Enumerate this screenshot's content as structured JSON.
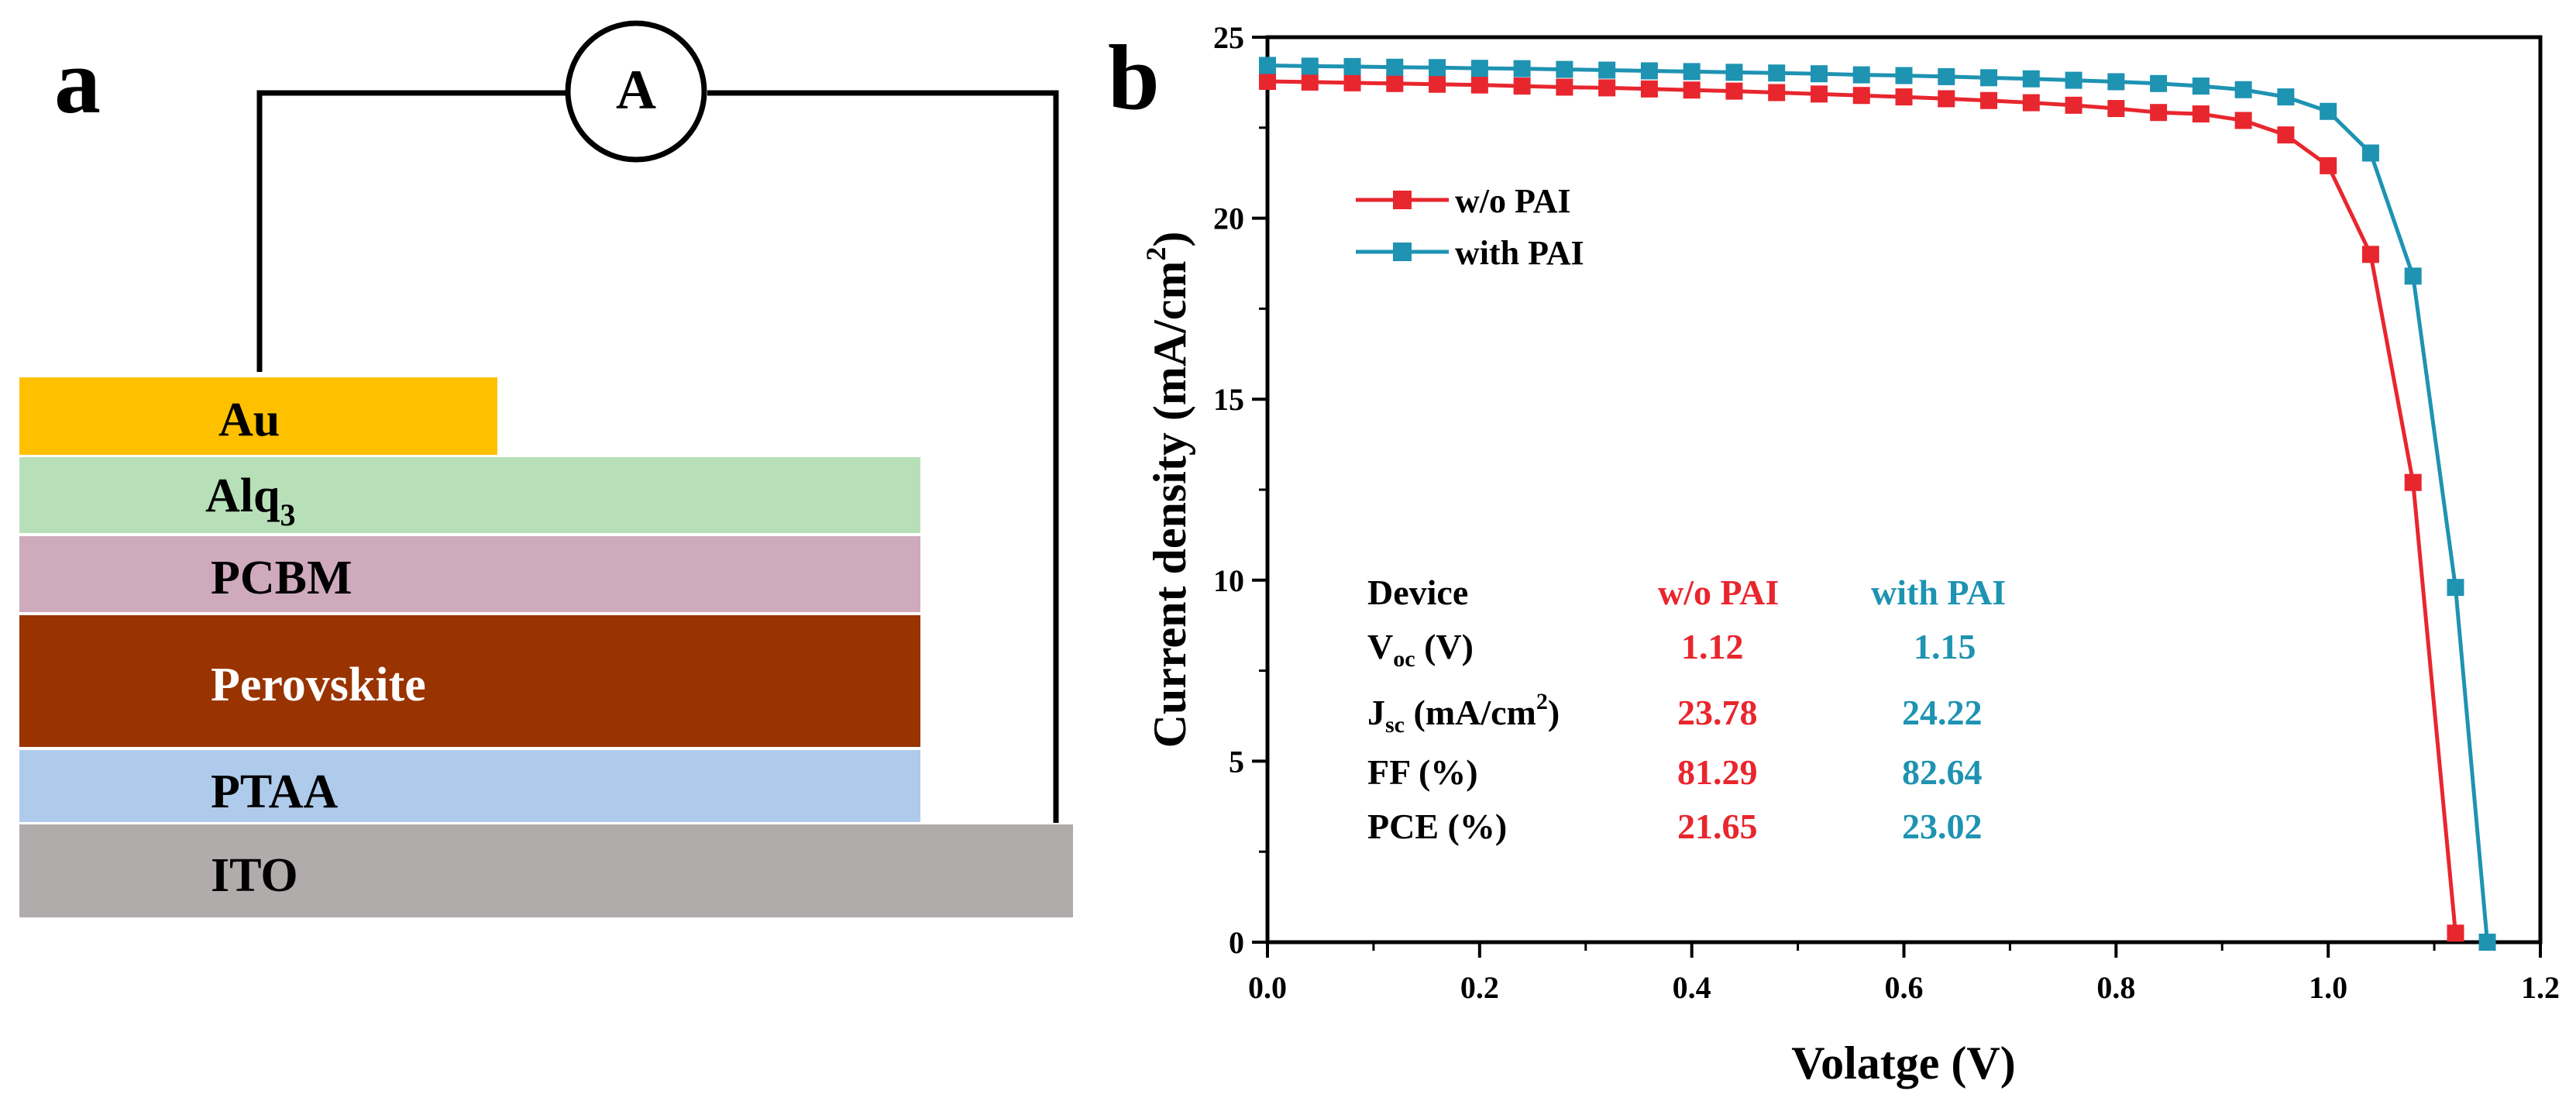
{
  "panels": {
    "a": {
      "label": "a",
      "ammeter_label": "A",
      "layers": [
        {
          "key": "au",
          "label": "Au",
          "color": "#FFC000"
        },
        {
          "key": "alq3",
          "label": "Alq",
          "subscript": "3",
          "color": "#B8E0B8"
        },
        {
          "key": "pcbm",
          "label": "PCBM",
          "color": "#CFAABC"
        },
        {
          "key": "perovskite",
          "label": "Perovskite",
          "color": "#993300"
        },
        {
          "key": "ptaa",
          "label": "PTAA",
          "color": "#AFCBEB"
        },
        {
          "key": "ito",
          "label": "ITO",
          "color": "#B0ACAC"
        }
      ]
    },
    "b": {
      "label": "b"
    }
  },
  "colors": {
    "without_pai": "#E8262E",
    "with_pai": "#1E93B2",
    "axis": "#000000"
  },
  "chart_data": {
    "type": "line",
    "title": "",
    "xlabel": "Volatge (V)",
    "ylabel_main": "Current density (mA/cm",
    "ylabel_sup": "2",
    "ylabel_end": ")",
    "xlim": [
      0.0,
      1.2
    ],
    "ylim": [
      0,
      25
    ],
    "xticks": [
      "0.0",
      "0.2",
      "0.4",
      "0.6",
      "0.8",
      "1.0",
      "1.2"
    ],
    "yticks": [
      "0",
      "5",
      "10",
      "15",
      "20",
      "25"
    ],
    "legend": {
      "position": "top-left"
    },
    "series": [
      {
        "name": "w/o PAI",
        "color": "#E8262E",
        "x": [
          0.0,
          0.04,
          0.08,
          0.12,
          0.16,
          0.2,
          0.24,
          0.28,
          0.32,
          0.36,
          0.4,
          0.44,
          0.48,
          0.52,
          0.56,
          0.6,
          0.64,
          0.68,
          0.72,
          0.76,
          0.8,
          0.84,
          0.88,
          0.92,
          0.96,
          1.0,
          1.04,
          1.08,
          1.12
        ],
        "y": [
          23.78,
          23.76,
          23.74,
          23.72,
          23.7,
          23.68,
          23.65,
          23.62,
          23.6,
          23.57,
          23.54,
          23.51,
          23.47,
          23.43,
          23.39,
          23.35,
          23.3,
          23.25,
          23.19,
          23.12,
          23.03,
          22.92,
          22.88,
          22.7,
          22.3,
          21.45,
          19.0,
          12.7,
          0.25
        ]
      },
      {
        "name": "with PAI",
        "color": "#1E93B2",
        "x": [
          0.0,
          0.04,
          0.08,
          0.12,
          0.16,
          0.2,
          0.24,
          0.28,
          0.32,
          0.36,
          0.4,
          0.44,
          0.48,
          0.52,
          0.56,
          0.6,
          0.64,
          0.68,
          0.72,
          0.76,
          0.8,
          0.84,
          0.88,
          0.92,
          0.96,
          1.0,
          1.04,
          1.08,
          1.12,
          1.15
        ],
        "y": [
          24.22,
          24.2,
          24.19,
          24.17,
          24.16,
          24.14,
          24.13,
          24.11,
          24.09,
          24.07,
          24.05,
          24.03,
          24.01,
          23.99,
          23.96,
          23.94,
          23.91,
          23.88,
          23.85,
          23.81,
          23.77,
          23.72,
          23.65,
          23.55,
          23.35,
          22.95,
          21.8,
          18.4,
          9.8,
          0.0
        ]
      }
    ],
    "table": {
      "headers": [
        "Device",
        "w/o PAI",
        "with PAI"
      ],
      "rows": [
        {
          "param": "V",
          "sub": "oc",
          "unit": " (V)",
          "sup": "",
          "unit_end": "",
          "without": "1.12",
          "with": "1.15"
        },
        {
          "param": "J",
          "sub": "sc",
          "unit": " (mA/cm",
          "sup": "2",
          "unit_end": ")",
          "without": "23.78",
          "with": "24.22"
        },
        {
          "param": "FF (%)",
          "sub": "",
          "unit": "",
          "sup": "",
          "unit_end": "",
          "without": "81.29",
          "with": "82.64"
        },
        {
          "param": "PCE (%)",
          "sub": "",
          "unit": "",
          "sup": "",
          "unit_end": "",
          "without": "21.65",
          "with": "23.02"
        }
      ]
    }
  }
}
